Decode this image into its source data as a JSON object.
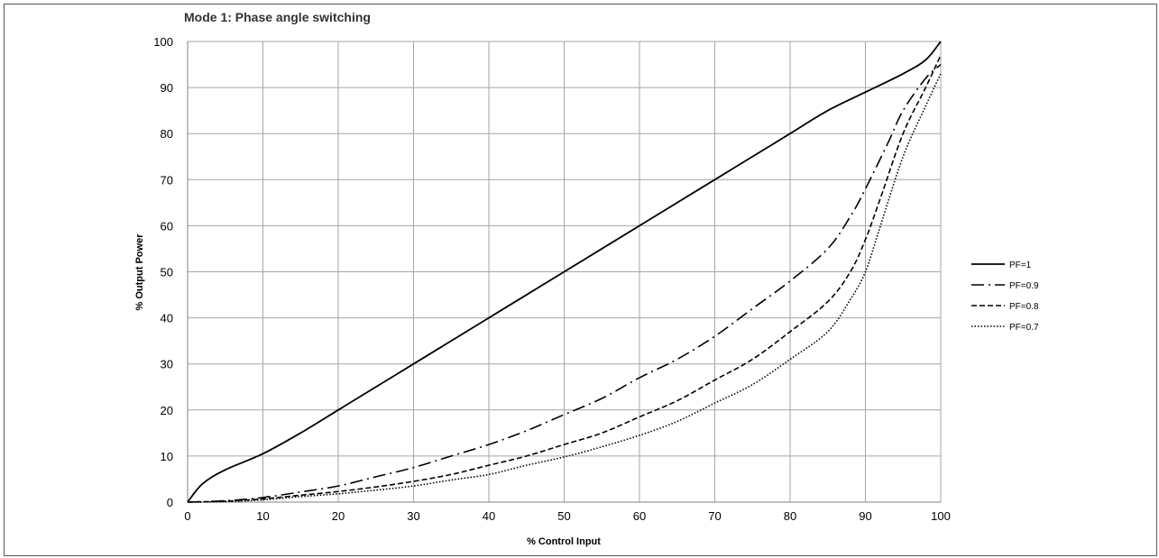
{
  "chart_data": {
    "type": "line",
    "title": "Mode 1: Phase angle switching",
    "xlabel": "% Control Input",
    "ylabel": "% Output Power",
    "xlim": [
      0,
      100
    ],
    "ylim": [
      0,
      100
    ],
    "xticks": [
      0,
      10,
      20,
      30,
      40,
      50,
      60,
      70,
      80,
      90,
      100
    ],
    "yticks": [
      0,
      10,
      20,
      30,
      40,
      50,
      60,
      70,
      80,
      90,
      100
    ],
    "grid": true,
    "legend_position": "right",
    "series": [
      {
        "name": "PF=1",
        "style": "solid",
        "x": [
          0,
          2,
          5,
          10,
          15,
          20,
          25,
          30,
          35,
          40,
          45,
          50,
          55,
          60,
          65,
          70,
          75,
          80,
          85,
          90,
          95,
          98,
          100
        ],
        "y": [
          0,
          4,
          7,
          10.5,
          15,
          20,
          25,
          30,
          35,
          40,
          45,
          50,
          55,
          60,
          65,
          70,
          75,
          80,
          85,
          89,
          93,
          96,
          100
        ]
      },
      {
        "name": "PF=0.9",
        "style": "dashdot",
        "x": [
          0,
          5,
          10,
          15,
          20,
          25,
          30,
          35,
          40,
          45,
          50,
          55,
          60,
          65,
          70,
          75,
          80,
          85,
          88,
          90,
          93,
          95,
          98,
          100
        ],
        "y": [
          0,
          0.3,
          1,
          2.2,
          3.5,
          5.5,
          7.5,
          10,
          12.5,
          15.5,
          19,
          22.5,
          27,
          31,
          36,
          42,
          48,
          55,
          62,
          68,
          78,
          85,
          92,
          95
        ]
      },
      {
        "name": "PF=0.8",
        "style": "dashed",
        "x": [
          0,
          5,
          10,
          15,
          20,
          25,
          30,
          35,
          40,
          45,
          50,
          55,
          60,
          65,
          70,
          75,
          80,
          85,
          88,
          90,
          92,
          95,
          98,
          100
        ],
        "y": [
          0,
          0.2,
          0.7,
          1.5,
          2.3,
          3.3,
          4.5,
          6,
          8,
          10,
          12.5,
          15,
          18.5,
          22,
          26.5,
          31,
          37,
          43.5,
          50,
          57,
          66,
          80,
          90,
          97
        ]
      },
      {
        "name": "PF=0.7",
        "style": "dotted",
        "x": [
          0,
          5,
          10,
          15,
          20,
          25,
          30,
          35,
          40,
          45,
          50,
          55,
          60,
          65,
          70,
          75,
          80,
          85,
          88,
          90,
          92,
          95,
          98,
          100
        ],
        "y": [
          0,
          0.1,
          0.5,
          1.2,
          1.8,
          2.6,
          3.5,
          4.8,
          6,
          8,
          9.8,
          12,
          14.5,
          17.5,
          21.5,
          25.5,
          31,
          37,
          44,
          50,
          60,
          75,
          86,
          93
        ]
      }
    ]
  }
}
